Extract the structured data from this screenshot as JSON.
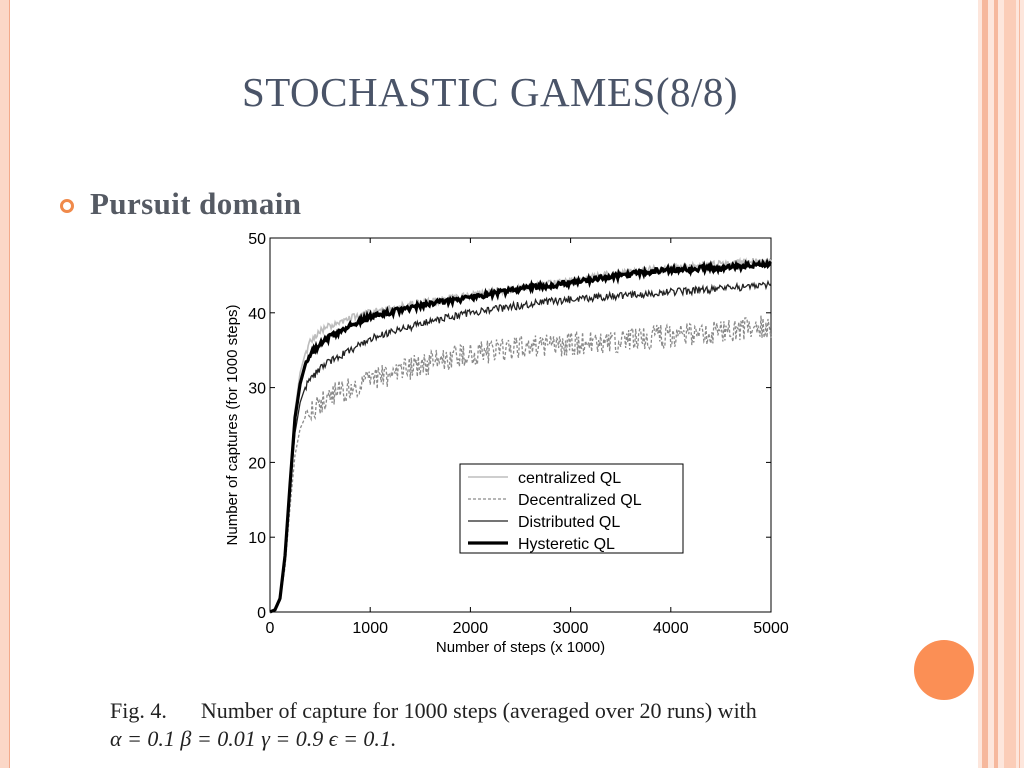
{
  "slide": {
    "title": "STOCHASTIC GAMES(8/8)",
    "bullet": "Pursuit domain",
    "caption_label": "Fig. 4.",
    "caption_text": "Number of capture for 1000 steps (averaged over 20 runs) with",
    "caption_params": "α = 0.1  β = 0.01  γ = 0.9  ϵ = 0.1.",
    "accent_color": "#f08a4b",
    "dot_color": "#fb8f55",
    "title_color": "#4a5468"
  },
  "chart_data": {
    "type": "line",
    "xlabel": "Number of steps (x 1000)",
    "ylabel": "Number of captures (for 1000 steps)",
    "xlim": [
      0,
      5000
    ],
    "ylim": [
      0,
      50
    ],
    "xticks": [
      0,
      1000,
      2000,
      3000,
      4000,
      5000
    ],
    "yticks": [
      0,
      10,
      20,
      30,
      40,
      50
    ],
    "grid": false,
    "legend_position": "lower-right",
    "x": [
      0,
      50,
      100,
      150,
      200,
      250,
      300,
      350,
      400,
      500,
      600,
      800,
      1000,
      1500,
      2000,
      2500,
      3000,
      3500,
      4000,
      4500,
      5000
    ],
    "series": [
      {
        "name": "centralized QL",
        "style": "thin-lightgray",
        "values": [
          0,
          0.3,
          2,
          8,
          18,
          27,
          32,
          34.5,
          36,
          37.5,
          38.3,
          39.3,
          40,
          41.3,
          42.3,
          43.3,
          44.3,
          45.3,
          46,
          46.5,
          47
        ]
      },
      {
        "name": "Decentralized QL",
        "style": "dashed-gray",
        "values": [
          0,
          0.3,
          1.5,
          6,
          14,
          21,
          24.5,
          26,
          27,
          28,
          28.8,
          30,
          31,
          33,
          34.5,
          35.3,
          35.8,
          36.3,
          37,
          37.5,
          38.2
        ]
      },
      {
        "name": "Distributed QL",
        "style": "thin-black",
        "values": [
          0,
          0.3,
          1.6,
          7,
          16,
          24,
          28,
          30,
          31,
          32.5,
          33.5,
          35,
          36.5,
          38.5,
          40,
          41,
          41.8,
          42.3,
          42.8,
          43.2,
          43.7
        ]
      },
      {
        "name": "Hysteretic QL",
        "style": "thick-black",
        "values": [
          0,
          0.3,
          1.8,
          7.5,
          17,
          26,
          30.5,
          33,
          34.5,
          35.8,
          36.8,
          38.3,
          39.5,
          41,
          42,
          43.2,
          44,
          45,
          45.8,
          46,
          46.5
        ]
      }
    ]
  }
}
